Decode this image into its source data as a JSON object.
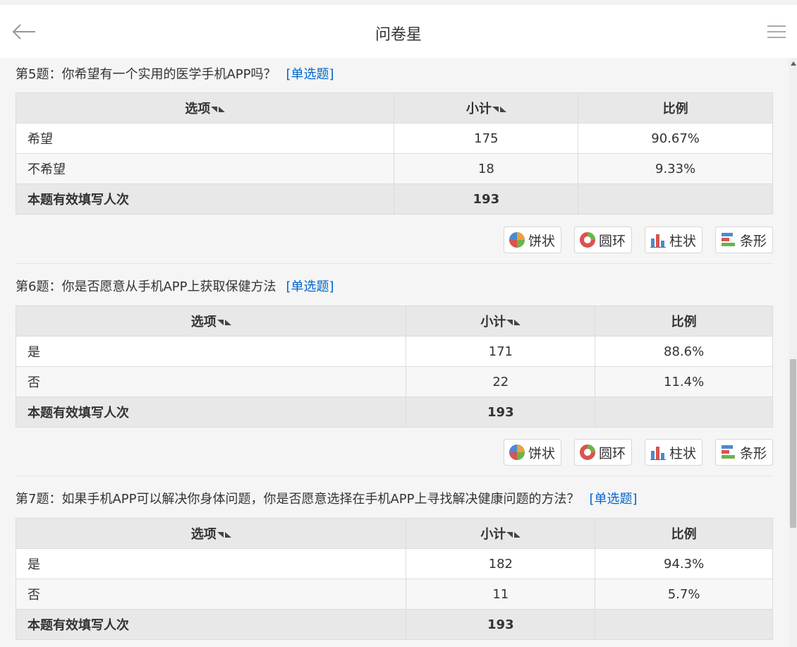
{
  "header": {
    "title": "问卷星"
  },
  "table_headers": {
    "option": "选项",
    "count": "小计",
    "ratio": "比例"
  },
  "chart_buttons": {
    "pie": "饼状",
    "ring": "圆环",
    "column": "柱状",
    "bar": "条形"
  },
  "questions": [
    {
      "title": "第5题：你希望有一个实用的医学手机APP吗？",
      "type": "[单选题]",
      "rows": [
        {
          "option": "希望",
          "count": "175",
          "ratio": "90.67%"
        },
        {
          "option": "不希望",
          "count": "18",
          "ratio": "9.33%"
        }
      ],
      "total_label": "本题有效填写人次",
      "total": "193"
    },
    {
      "title": "第6题：你是否愿意从手机APP上获取保健方法",
      "type": "[单选题]",
      "rows": [
        {
          "option": "是",
          "count": "171",
          "ratio": "88.6%"
        },
        {
          "option": "否",
          "count": "22",
          "ratio": "11.4%"
        }
      ],
      "total_label": "本题有效填写人次",
      "total": "193"
    },
    {
      "title": "第7题：如果手机APP可以解决你身体问题，你是否愿意选择在手机APP上寻找解决健康问题的方法？",
      "type": "[单选题]",
      "rows": [
        {
          "option": "是",
          "count": "182",
          "ratio": "94.3%"
        },
        {
          "option": "否",
          "count": "11",
          "ratio": "5.7%"
        }
      ],
      "total_label": "本题有效填写人次",
      "total": "193"
    }
  ],
  "colors": {
    "link": "#0066cc",
    "header_bg": "#e8e8e8"
  }
}
